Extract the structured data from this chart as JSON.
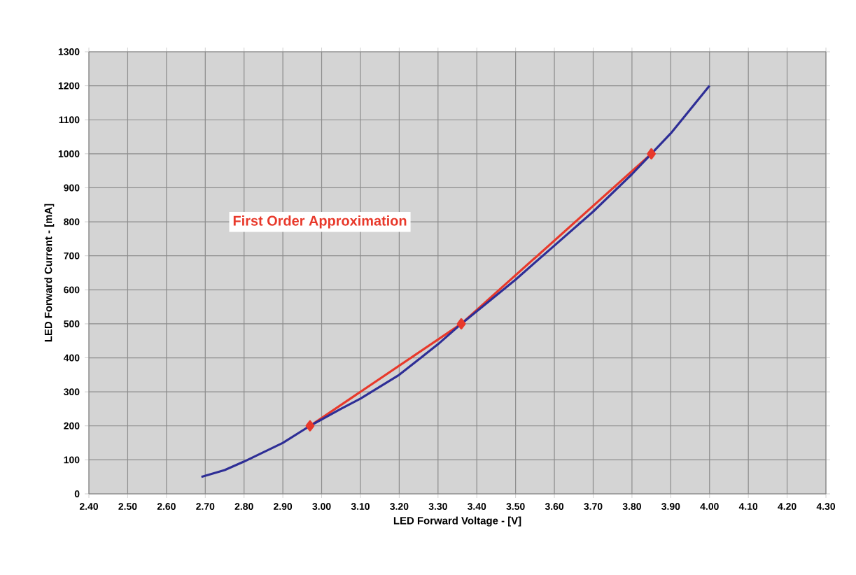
{
  "chart_data": {
    "type": "line",
    "xlabel": "LED Forward Voltage - [V]",
    "ylabel": "LED Forward Current - [mA]",
    "series": [
      {
        "color": "#2e2e96",
        "marker": "none",
        "x": [
          2.69,
          2.75,
          2.8,
          2.9,
          2.97,
          3.05,
          3.1,
          3.2,
          3.3,
          3.36,
          3.5,
          3.6,
          3.7,
          3.8,
          3.85,
          3.9,
          4.0
        ],
        "values": [
          50,
          70,
          95,
          150,
          200,
          250,
          280,
          350,
          440,
          500,
          630,
          730,
          830,
          940,
          1000,
          1060,
          1200
        ]
      },
      {
        "name": "First Order Approximation",
        "color": "#e8392b",
        "marker": "diamond",
        "x": [
          2.97,
          3.36,
          3.85
        ],
        "values": [
          200,
          500,
          1000
        ]
      }
    ],
    "xlim": [
      2.4,
      4.3
    ],
    "ylim": [
      0,
      1300
    ],
    "xticks": [
      {
        "value": 2.4,
        "label": "2.40"
      },
      {
        "value": 2.5,
        "label": "2.50"
      },
      {
        "value": 2.6,
        "label": "2.60"
      },
      {
        "value": 2.7,
        "label": "2.70"
      },
      {
        "value": 2.8,
        "label": "2.80"
      },
      {
        "value": 2.9,
        "label": "2.90"
      },
      {
        "value": 3.0,
        "label": "3.00"
      },
      {
        "value": 3.1,
        "label": "3.10"
      },
      {
        "value": 3.2,
        "label": "3.20"
      },
      {
        "value": 3.3,
        "label": "3.30"
      },
      {
        "value": 3.4,
        "label": "3.40"
      },
      {
        "value": 3.5,
        "label": "3.50"
      },
      {
        "value": 3.6,
        "label": "3.60"
      },
      {
        "value": 3.7,
        "label": "3.70"
      },
      {
        "value": 3.8,
        "label": "3.80"
      },
      {
        "value": 3.9,
        "label": "3.90"
      },
      {
        "value": 4.0,
        "label": "4.00"
      },
      {
        "value": 4.1,
        "label": "4.10"
      },
      {
        "value": 4.2,
        "label": "4.20"
      },
      {
        "value": 4.3,
        "label": "4.30"
      }
    ],
    "yticks": [
      0,
      100,
      200,
      300,
      400,
      500,
      600,
      700,
      800,
      900,
      1000,
      1100,
      1200,
      1300
    ],
    "grid": true
  }
}
